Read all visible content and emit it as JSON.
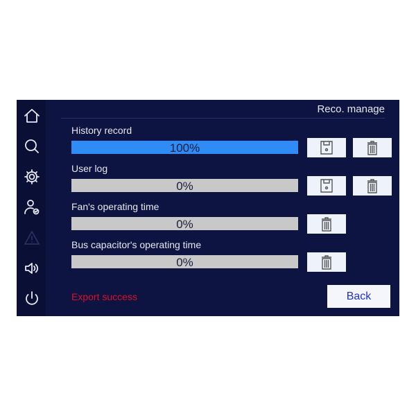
{
  "header": {
    "title": "Reco. manage"
  },
  "sidebar": {
    "items": [
      {
        "icon": "home-icon"
      },
      {
        "icon": "search-icon"
      },
      {
        "icon": "gear-icon"
      },
      {
        "icon": "user-check-icon"
      },
      {
        "icon": "warning-icon",
        "disabled": true
      },
      {
        "icon": "speaker-icon"
      },
      {
        "icon": "power-icon"
      }
    ]
  },
  "records": [
    {
      "label": "History record",
      "progress_text": "100%",
      "progress": 100
    },
    {
      "label": "User log",
      "progress_text": "0%",
      "progress": 0
    },
    {
      "label": "Fan's operating time",
      "progress_text": "0%",
      "progress": 0
    },
    {
      "label": "Bus capacitor's operating time",
      "progress_text": "0%",
      "progress": 0
    }
  ],
  "status": {
    "text": "Export success",
    "color": "#d8102a"
  },
  "back_label": "Back",
  "colors": {
    "progress_fill": "#2f8cf6",
    "progress_track": "#c8c8c8",
    "background": "#0e1442"
  }
}
